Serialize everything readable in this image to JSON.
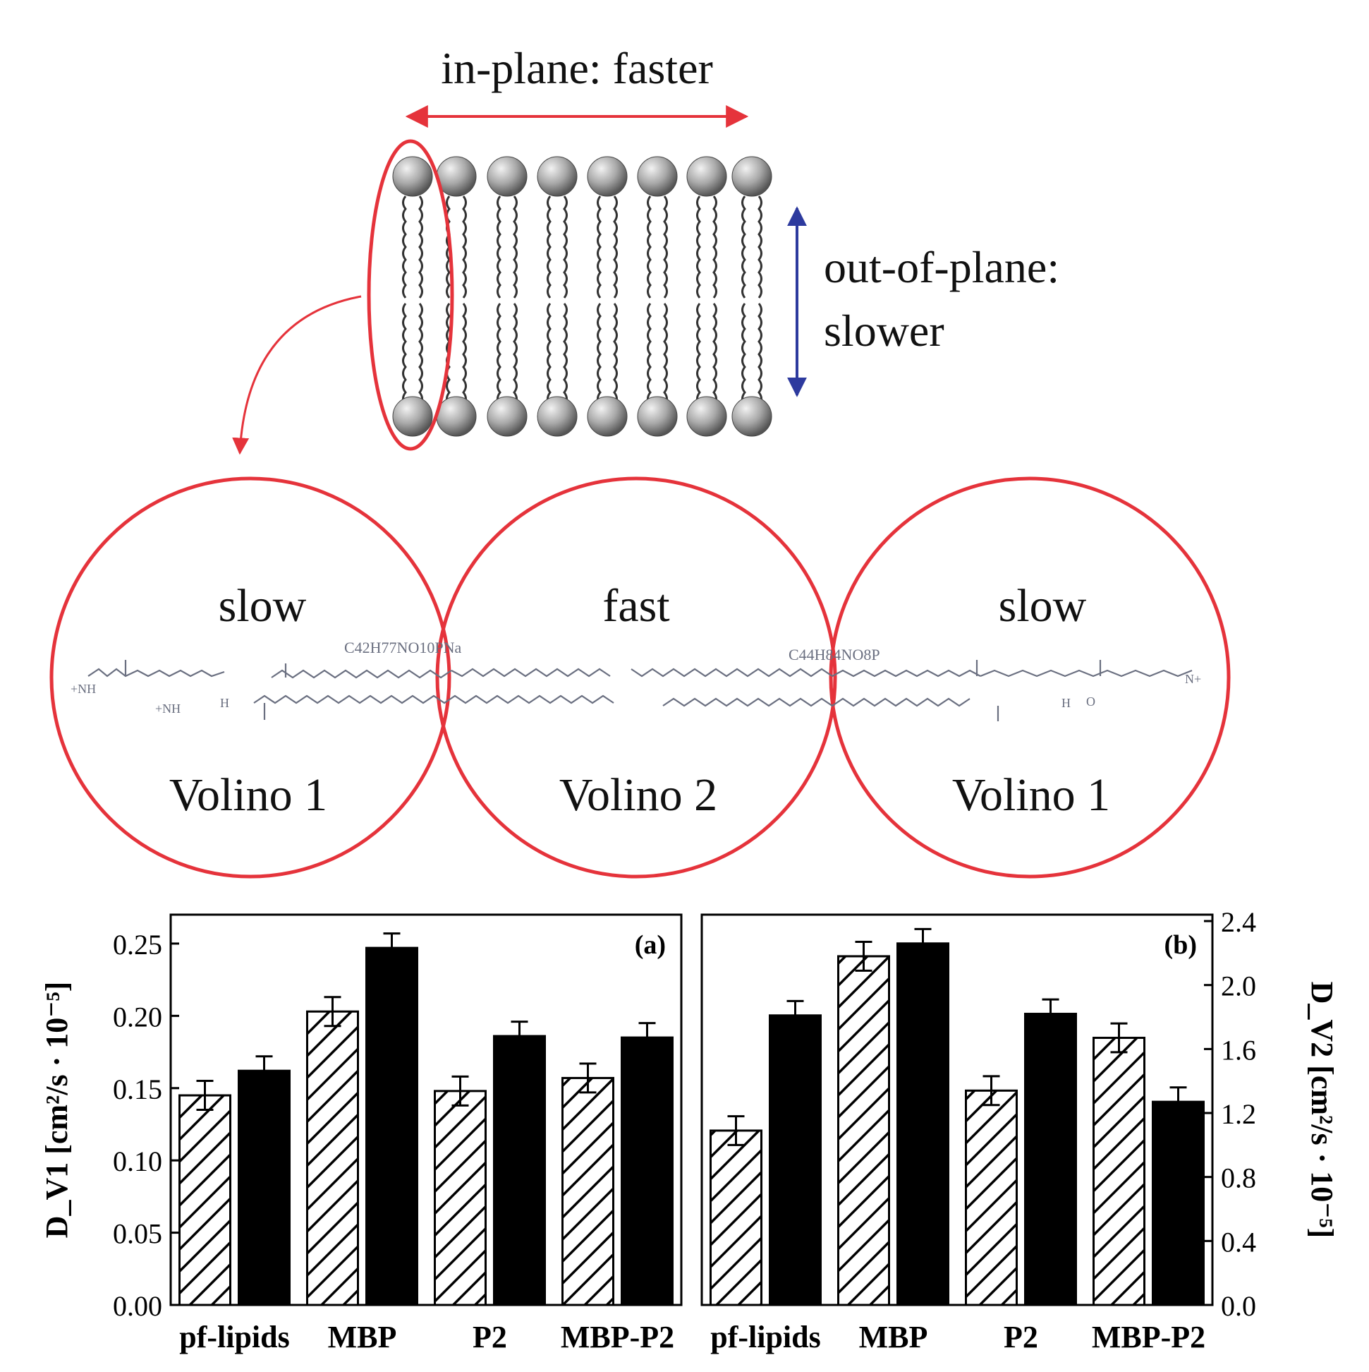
{
  "colors": {
    "red": "#e5333b",
    "blue": "#2d3a9e",
    "bar_fill": "#000000",
    "hatch": "#000000"
  },
  "diagram": {
    "in_plane_label": "in-plane: faster",
    "out_of_plane_line1": "out-of-plane:",
    "out_of_plane_line2": "slower",
    "circles": [
      {
        "speed": "slow",
        "name": "Volino 1"
      },
      {
        "speed": "fast",
        "name": "Volino 2"
      },
      {
        "speed": "slow",
        "name": "Volino 1"
      }
    ],
    "formula_left": "C42H77NO10PNa",
    "formula_right": "C44H84NO8P",
    "chem_labels": [
      "+NH",
      "+NH",
      "H",
      "H",
      "O",
      "N+"
    ]
  },
  "chart_data": [
    {
      "type": "bar",
      "panel_label": "(a)",
      "categories": [
        "pf-lipids",
        "MBP",
        "P2",
        "MBP-P2"
      ],
      "ylabel": "D_V1 [cm²/s · 10⁻⁵]",
      "ylim": [
        0,
        0.27
      ],
      "yticks": [
        "0.00",
        "0.05",
        "0.10",
        "0.15",
        "0.20",
        "0.25"
      ],
      "axis_side": "left",
      "series": [
        {
          "style": "hatched",
          "values": [
            0.145,
            0.203,
            0.148,
            0.157
          ],
          "errors": [
            0.01,
            0.01,
            0.01,
            0.01
          ]
        },
        {
          "style": "solid",
          "values": [
            0.162,
            0.247,
            0.186,
            0.185
          ],
          "errors": [
            0.01,
            0.01,
            0.01,
            0.01
          ]
        }
      ]
    },
    {
      "type": "bar",
      "panel_label": "(b)",
      "categories": [
        "pf-lipids",
        "MBP",
        "P2",
        "MBP-P2"
      ],
      "ylabel": "D_V2 [cm²/s · 10⁻⁵]",
      "ylim": [
        0,
        2.44
      ],
      "yticks": [
        "0.0",
        "0.4",
        "0.8",
        "1.2",
        "1.6",
        "2.0",
        "2.4"
      ],
      "axis_side": "right",
      "series": [
        {
          "style": "hatched",
          "values": [
            1.09,
            2.18,
            1.34,
            1.67
          ],
          "errors": [
            0.09,
            0.09,
            0.09,
            0.09
          ]
        },
        {
          "style": "solid",
          "values": [
            1.81,
            2.26,
            1.82,
            1.27
          ],
          "errors": [
            0.09,
            0.09,
            0.09,
            0.09
          ]
        }
      ]
    }
  ]
}
